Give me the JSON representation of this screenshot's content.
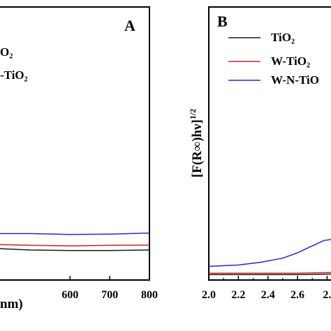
{
  "chart_data": [
    {
      "panel": "A",
      "type": "line",
      "xlabel_fragment": "nm)",
      "x_ticks": [
        600,
        700,
        800
      ],
      "xlim": [
        420,
        800
      ],
      "ylim": [
        0,
        1
      ],
      "legend_fragments": [
        "O₂",
        "-TiO₂"
      ],
      "series": [
        {
          "color": "#1a1a1a",
          "x": [
            420,
            500,
            600,
            700,
            800
          ],
          "y": [
            0.115,
            0.11,
            0.108,
            0.108,
            0.11
          ]
        },
        {
          "color": "#d42020",
          "x": [
            420,
            500,
            600,
            700,
            800
          ],
          "y": [
            0.13,
            0.127,
            0.125,
            0.127,
            0.128
          ]
        },
        {
          "color": "#2727d8",
          "x": [
            420,
            500,
            600,
            700,
            800
          ],
          "y": [
            0.17,
            0.17,
            0.167,
            0.168,
            0.172
          ]
        }
      ]
    },
    {
      "panel": "B",
      "type": "line",
      "ylabel": "[F(R∞)hν]",
      "ylabel_sup": "1/2",
      "x_ticks": [
        "2.0",
        "2.2",
        "2.4",
        "2.6",
        "2."
      ],
      "xlim": [
        2.0,
        2.85
      ],
      "ylim": [
        0,
        1
      ],
      "legend": [
        "TiO₂",
        "W-TiO₂",
        "W-N-TiO"
      ],
      "series": [
        {
          "name": "TiO₂",
          "color": "#1a1a1a",
          "x": [
            2.0,
            2.3,
            2.6,
            2.85
          ],
          "y": [
            0.02,
            0.02,
            0.02,
            0.022
          ]
        },
        {
          "name": "W-TiO₂",
          "color": "#d42020",
          "x": [
            2.0,
            2.3,
            2.6,
            2.85
          ],
          "y": [
            0.025,
            0.025,
            0.025,
            0.028
          ]
        },
        {
          "name": "W-N-TiO",
          "color": "#2727d8",
          "x": [
            2.0,
            2.2,
            2.35,
            2.5,
            2.6,
            2.7,
            2.78,
            2.85
          ],
          "y": [
            0.05,
            0.055,
            0.065,
            0.08,
            0.1,
            0.125,
            0.145,
            0.15
          ]
        }
      ]
    }
  ]
}
